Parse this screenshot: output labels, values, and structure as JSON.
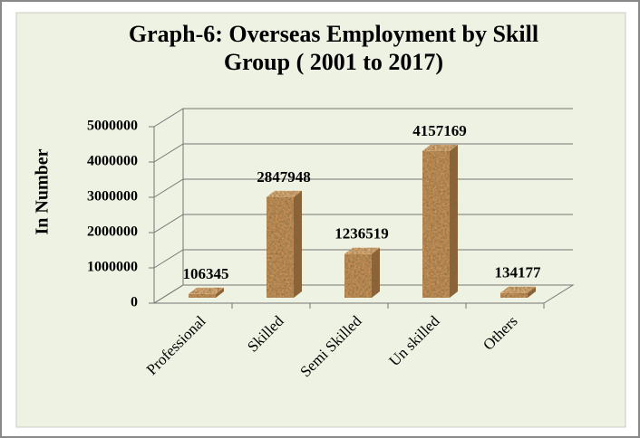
{
  "chart_data": {
    "type": "bar3d",
    "title": "Graph-6: Overseas Employment by Skill Group ( 2001 to 2017)",
    "y_label": "In Number",
    "categories": [
      "Professional",
      "Skilled",
      "Semi Skilled",
      "Un skilled",
      "Others"
    ],
    "values": [
      106345,
      2847948,
      1236519,
      4157169,
      134177
    ],
    "color": "#c8935a",
    "ylim": [
      0,
      5000000
    ],
    "yticks": [
      0,
      1000000,
      2000000,
      3000000,
      4000000,
      5000000
    ],
    "grid": true
  }
}
